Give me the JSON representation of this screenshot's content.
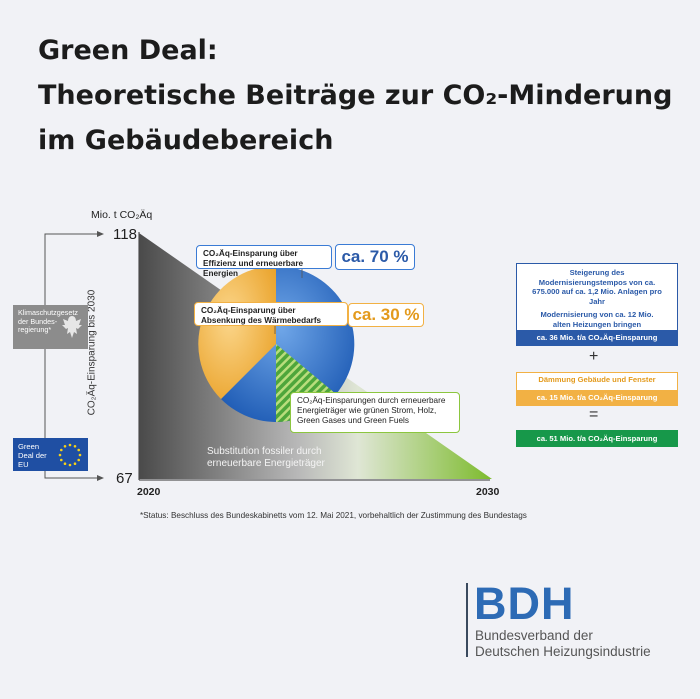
{
  "title": {
    "line1": "Green Deal:",
    "line2": "Theoretische Beiträge zur CO₂-Minderung",
    "line3": "im Gebäudebereich"
  },
  "chart_data": {
    "type": "area",
    "y_unit": "Mio. t CO₂Äq",
    "ylabel": "CO₂Äq-Einsparung bis 2030",
    "x": [
      2020,
      2030
    ],
    "y": [
      118,
      67
    ],
    "ylim": [
      67,
      118
    ],
    "ticks": {
      "y_top": "118",
      "y_bottom": "67",
      "x_left": "2020",
      "x_right": "2030"
    },
    "bottom_label": "Substitution fossiler durch erneuerbare Energieträger",
    "pie": {
      "slices": [
        {
          "name": "Einsparung über Effizienz und erneuerbare Energien",
          "share": 70,
          "color": "#3a7bd5"
        },
        {
          "name": "Einsparung über Absenkung des Wärmebedarfs",
          "share": 30,
          "color": "#f2b144"
        }
      ]
    },
    "callouts": {
      "effizienz_text": "CO₂Äq-Einsparung über Effizienz und erneuerbare Energien",
      "effizienz_value": "ca. 70 %",
      "waerme_text": "CO₂Äq-Einsparung über Absenkung des Wärmebedarfs",
      "waerme_value": "ca. 30 %",
      "erneuerbare_text": "CO₂Äq-Einsparungen durch erneuerbare Energieträger wie grünen Strom, Holz, Green Gases und Green Fuels"
    }
  },
  "sidebar": {
    "klimaschutz": "Klimaschutzgesetz der Bundes-regierung*",
    "greendeal": "Green Deal der EU"
  },
  "right_panel": {
    "modern_title": "Steigerung des Modernisierungstempos von ca. 675.000 auf ca. 1,2 Mio. Anlagen pro Jahr",
    "modern_sub": "Modernisierung von ca. 12 Mio. alten Heizungen bringen",
    "modern_value": "ca. 36 Mio. t/a CO₂Äq-Einsparung",
    "plus": "+",
    "daemmung_title": "Dämmung Gebäude und Fenster",
    "daemmung_value": "ca. 15 Mio. t/a CO₂Äq-Einsparung",
    "equals": "=",
    "total_value": "ca. 51 Mio. t/a CO₂Äq-Einsparung"
  },
  "footnote": "*Status: Beschluss des Bundeskabinetts vom 12. Mai 2021, vorbehaltlich der Zustimmung des Bundestags",
  "logo": {
    "name": "BDH",
    "line1": "Bundesverband der",
    "line2": "Deutschen Heizungsindustrie"
  },
  "colors": {
    "blue": "#3a7bd5",
    "orange": "#f2b144",
    "green": "#8cc63f",
    "dark_blue": "#2b5aa8",
    "dark_green": "#17984a",
    "grey": "#8a8a8a"
  }
}
